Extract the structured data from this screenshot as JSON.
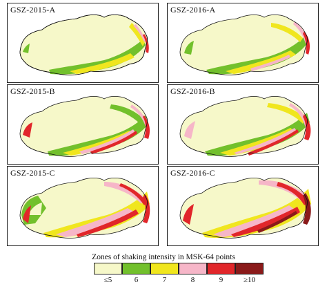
{
  "panels": [
    {
      "title": "GSZ-2015-A"
    },
    {
      "title": "GSZ-2016-A"
    },
    {
      "title": "GSZ-2015-B"
    },
    {
      "title": "GSZ-2016-B"
    },
    {
      "title": "GSZ-2015-C"
    },
    {
      "title": "GSZ-2016-C"
    }
  ],
  "legend": {
    "title": "Zones of shaking intensity in MSK-64 points",
    "classes": [
      {
        "label": "≤5",
        "color": "#f6f8c9"
      },
      {
        "label": "6",
        "color": "#72c02c"
      },
      {
        "label": "7",
        "color": "#f0e61e"
      },
      {
        "label": "8",
        "color": "#f6b6c8"
      },
      {
        "label": "9",
        "color": "#e1262a"
      },
      {
        "label": "≥10",
        "color": "#8a1a1a"
      }
    ]
  }
}
